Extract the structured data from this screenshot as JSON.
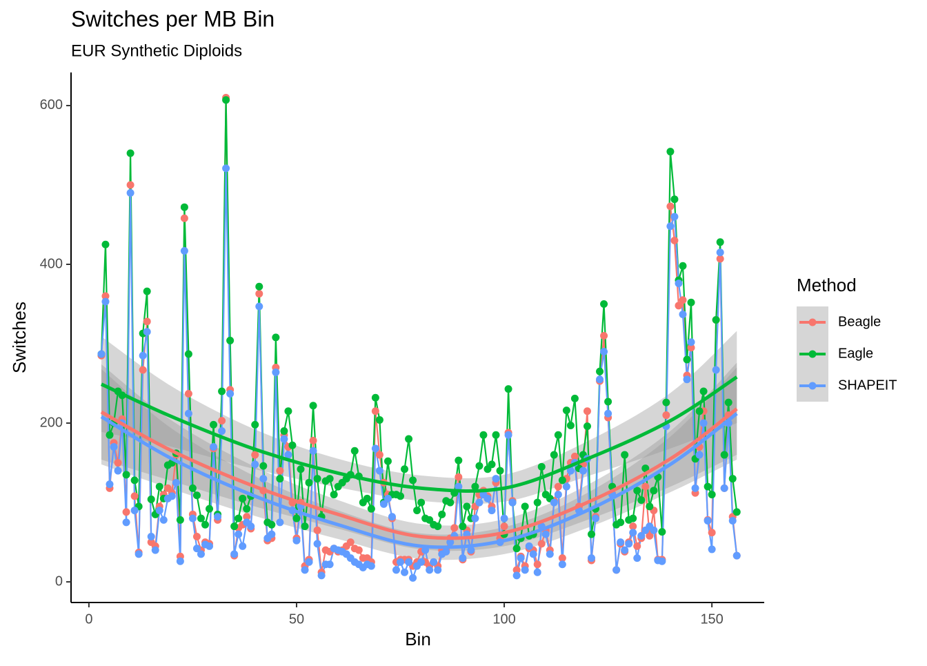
{
  "chart_data": {
    "type": "line",
    "title": "Switches per MB Bin",
    "subtitle": "EUR Synthetic Diploids",
    "x_label": "Bin",
    "y_label": "Switches",
    "legend_title": "Method",
    "legend_position": "right",
    "xlim": [
      -4.3,
      162.6
    ],
    "ylim": [
      -26,
      641.7
    ],
    "xticks": [
      0,
      50,
      100,
      150
    ],
    "yticks": [
      0,
      200,
      400,
      600
    ],
    "x": [
      3,
      4,
      5,
      6,
      7,
      8,
      9,
      10,
      11,
      12,
      13,
      14,
      15,
      16,
      17,
      18,
      19,
      20,
      21,
      22,
      23,
      24,
      25,
      26,
      27,
      28,
      29,
      30,
      31,
      32,
      33,
      34,
      35,
      36,
      37,
      38,
      39,
      40,
      41,
      42,
      43,
      44,
      45,
      46,
      47,
      48,
      49,
      50,
      51,
      52,
      53,
      54,
      55,
      56,
      57,
      58,
      59,
      60,
      61,
      62,
      63,
      64,
      65,
      66,
      67,
      68,
      69,
      70,
      71,
      72,
      73,
      74,
      75,
      76,
      77,
      78,
      79,
      80,
      81,
      82,
      83,
      84,
      85,
      86,
      87,
      88,
      89,
      90,
      91,
      92,
      93,
      94,
      95,
      96,
      97,
      98,
      99,
      100,
      101,
      102,
      103,
      104,
      105,
      106,
      107,
      108,
      109,
      110,
      111,
      112,
      113,
      114,
      115,
      116,
      117,
      118,
      119,
      120,
      121,
      122,
      123,
      124,
      125,
      126,
      127,
      128,
      129,
      130,
      131,
      132,
      133,
      134,
      135,
      136,
      137,
      138,
      139,
      140,
      141,
      142,
      143,
      144,
      145,
      146,
      147,
      148,
      149,
      150,
      151,
      152,
      153,
      154,
      155,
      156
    ],
    "series": [
      {
        "name": "Beagle",
        "color": "#F8766D",
        "values": [
          285,
          360,
          118,
          175,
          150,
          205,
          88,
          500,
          108,
          37,
          267,
          328,
          50,
          45,
          95,
          110,
          118,
          112,
          160,
          32,
          458,
          237,
          85,
          57,
          40,
          50,
          48,
          168,
          78,
          203,
          610,
          242,
          33,
          68,
          72,
          82,
          67,
          160,
          363,
          115,
          52,
          55,
          270,
          140,
          185,
          170,
          100,
          55,
          100,
          20,
          28,
          178,
          65,
          12,
          40,
          38,
          42,
          38,
          40,
          45,
          50,
          42,
          40,
          30,
          30,
          25,
          215,
          160,
          125,
          110,
          80,
          25,
          28,
          28,
          28,
          20,
          25,
          38,
          25,
          20,
          25,
          20,
          40,
          40,
          55,
          68,
          132,
          28,
          65,
          38,
          95,
          110,
          115,
          108,
          95,
          125,
          55,
          70,
          188,
          102,
          15,
          32,
          20,
          42,
          40,
          22,
          48,
          65,
          40,
          102,
          120,
          30,
          130,
          150,
          158,
          95,
          148,
          215,
          27,
          82,
          253,
          310,
          207,
          111,
          15,
          48,
          38,
          50,
          70,
          45,
          55,
          120,
          58,
          90,
          28,
          28,
          210,
          473,
          430,
          348,
          355,
          260,
          295,
          112,
          170,
          215,
          78,
          62,
          330,
          407,
          118,
          210,
          82,
          33
        ],
        "trend": {
          "x": [
            3,
            20,
            40,
            60,
            80,
            100,
            120,
            140,
            156
          ],
          "values": [
            214,
            165,
            120,
            85,
            57,
            62,
            100,
            155,
            218
          ],
          "lower": [
            154,
            127,
            95,
            67,
            41,
            45,
            78,
            120,
            160
          ],
          "upper": [
            274,
            203,
            145,
            103,
            73,
            79,
            122,
            190,
            276
          ]
        }
      },
      {
        "name": "Eagle",
        "color": "#00BA38",
        "values": [
          287,
          425,
          185,
          200,
          240,
          235,
          135,
          540,
          128,
          95,
          313,
          366,
          104,
          85,
          120,
          105,
          147,
          150,
          162,
          78,
          472,
          287,
          118,
          109,
          80,
          72,
          92,
          198,
          85,
          240,
          607,
          304,
          70,
          80,
          105,
          92,
          108,
          198,
          372,
          146,
          75,
          72,
          308,
          130,
          190,
          215,
          172,
          80,
          142,
          70,
          125,
          222,
          130,
          82,
          127,
          130,
          110,
          120,
          125,
          130,
          135,
          165,
          133,
          100,
          105,
          92,
          232,
          204,
          100,
          152,
          110,
          110,
          108,
          142,
          180,
          128,
          90,
          100,
          80,
          78,
          72,
          70,
          85,
          102,
          100,
          112,
          153,
          70,
          95,
          80,
          120,
          146,
          185,
          142,
          148,
          185,
          140,
          60,
          243,
          100,
          42,
          55,
          95,
          58,
          60,
          100,
          145,
          110,
          105,
          160,
          185,
          128,
          216,
          197,
          231,
          143,
          160,
          196,
          60,
          92,
          265,
          350,
          227,
          120,
          72,
          75,
          160,
          78,
          80,
          115,
          103,
          143,
          95,
          115,
          132,
          63,
          226,
          542,
          482,
          380,
          398,
          280,
          352,
          155,
          215,
          240,
          120,
          110,
          330,
          428,
          160,
          226,
          130,
          88
        ],
        "trend": {
          "x": [
            3,
            20,
            40,
            60,
            80,
            100,
            120,
            140,
            156
          ],
          "values": [
            249,
            208,
            167,
            137,
            118,
            118,
            155,
            203,
            258
          ],
          "lower": [
            189,
            170,
            142,
            119,
            102,
            101,
            133,
            168,
            200
          ],
          "upper": [
            309,
            246,
            192,
            155,
            134,
            135,
            177,
            238,
            316
          ]
        }
      },
      {
        "name": "SHAPEIT",
        "color": "#619CFF",
        "values": [
          287,
          353,
          123,
          170,
          140,
          200,
          75,
          490,
          90,
          35,
          285,
          315,
          57,
          40,
          90,
          78,
          105,
          108,
          125,
          26,
          417,
          212,
          80,
          42,
          35,
          47,
          45,
          170,
          82,
          190,
          521,
          237,
          35,
          60,
          45,
          75,
          70,
          148,
          347,
          130,
          55,
          60,
          264,
          75,
          180,
          160,
          90,
          52,
          95,
          15,
          25,
          165,
          48,
          8,
          22,
          22,
          42,
          40,
          38,
          35,
          30,
          25,
          22,
          18,
          22,
          20,
          168,
          140,
          98,
          105,
          82,
          15,
          25,
          12,
          25,
          5,
          20,
          25,
          40,
          15,
          25,
          15,
          35,
          38,
          50,
          58,
          120,
          30,
          60,
          40,
          80,
          100,
          110,
          105,
          90,
          130,
          50,
          80,
          185,
          100,
          8,
          30,
          15,
          45,
          35,
          12,
          70,
          60,
          35,
          100,
          110,
          22,
          120,
          140,
          150,
          90,
          140,
          155,
          30,
          80,
          255,
          290,
          212,
          110,
          15,
          50,
          40,
          48,
          62,
          30,
          58,
          65,
          70,
          65,
          27,
          26,
          196,
          448,
          460,
          376,
          337,
          255,
          302,
          118,
          160,
          200,
          77,
          41,
          267,
          415,
          118,
          200,
          77,
          33
        ],
        "trend": {
          "x": [
            3,
            20,
            40,
            60,
            80,
            100,
            120,
            140,
            156
          ],
          "values": [
            208,
            155,
            108,
            72,
            45,
            52,
            90,
            148,
            212
          ],
          "lower": [
            148,
            117,
            83,
            54,
            29,
            35,
            68,
            113,
            154
          ],
          "upper": [
            268,
            193,
            133,
            90,
            61,
            69,
            112,
            183,
            270
          ]
        }
      }
    ]
  }
}
